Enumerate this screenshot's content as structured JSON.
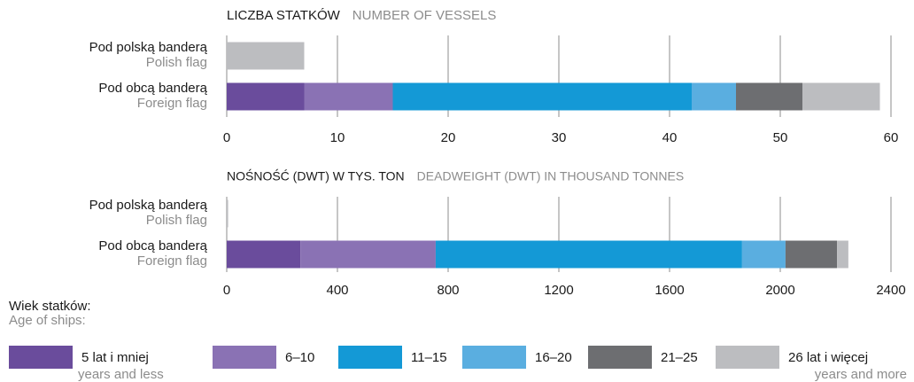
{
  "chart_data": [
    {
      "type": "bar",
      "orientation": "horizontal",
      "stacked": true,
      "title": "LICZBA STATKÓW",
      "subtitle": "NUMBER OF VESSELS",
      "categories": [
        "Pod polską banderą",
        "Pod obcą banderą"
      ],
      "category_subtitles": [
        "Polish flag",
        "Foreign flag"
      ],
      "series": [
        {
          "values": [
            0,
            7
          ]
        },
        {
          "values": [
            0,
            8
          ]
        },
        {
          "values": [
            0,
            27
          ]
        },
        {
          "values": [
            0,
            4
          ]
        },
        {
          "values": [
            0,
            6
          ]
        },
        {
          "values": [
            7,
            7
          ]
        }
      ],
      "xlim": [
        0,
        60
      ],
      "xticks": [
        0,
        10,
        20,
        30,
        40,
        50,
        60
      ],
      "grid": true
    },
    {
      "type": "bar",
      "orientation": "horizontal",
      "stacked": true,
      "title": "NOŚNOŚĆ (DWT) W TYS. TON",
      "subtitle": "DEADWEIGHT (DWT) IN THOUSAND TONNES",
      "categories": [
        "Pod polską banderą",
        "Pod obcą banderą"
      ],
      "category_subtitles": [
        "Polish flag",
        "Foreign flag"
      ],
      "series": [
        {
          "values": [
            0,
            266
          ]
        },
        {
          "values": [
            0,
            489
          ]
        },
        {
          "values": [
            0,
            1107
          ]
        },
        {
          "values": [
            0,
            157
          ]
        },
        {
          "values": [
            0,
            186
          ]
        },
        {
          "values": [
            5,
            41
          ]
        }
      ],
      "xlim": [
        0,
        2400
      ],
      "xticks": [
        0,
        400,
        800,
        1200,
        1600,
        2000,
        2400
      ],
      "grid": true
    }
  ],
  "legend": {
    "title": "Wiek statków:",
    "subtitle": "Age of ships:",
    "items": [
      {
        "name": "5 lat i mniej",
        "subname": "years and less",
        "color": "#6a4c9c"
      },
      {
        "name": "6–10",
        "color": "#8a72b4"
      },
      {
        "name": "11–15",
        "color": "#1499d6"
      },
      {
        "name": "16–20",
        "color": "#5aaee0"
      },
      {
        "name": "21–25",
        "color": "#6d6e71"
      },
      {
        "name": "26 lat i więcej",
        "subname": "years and more",
        "color": "#bcbdc0"
      }
    ]
  }
}
